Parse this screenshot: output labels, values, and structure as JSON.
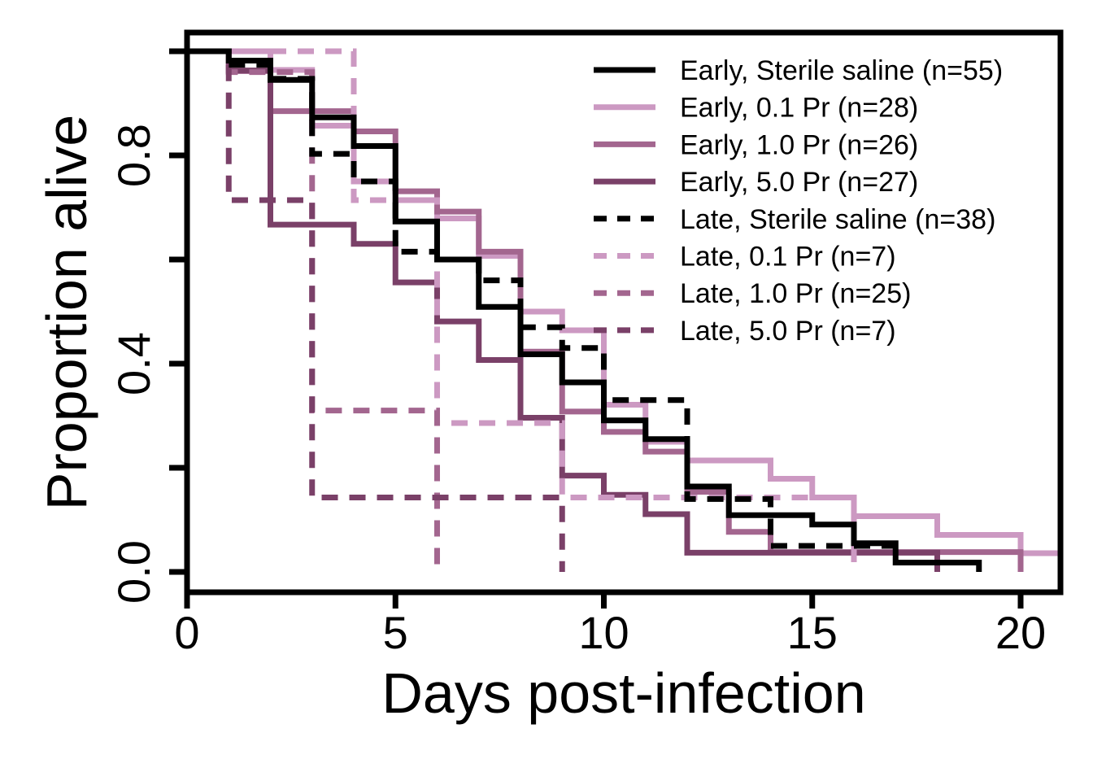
{
  "chart_data": {
    "type": "line",
    "subtype": "kaplan-meier step survival curves",
    "xlabel": "Days post-infection",
    "ylabel": "Proportion alive",
    "xlim": [
      0,
      21
    ],
    "ylim": [
      0,
      1
    ],
    "x_ticks": [
      0,
      5,
      10,
      15,
      20
    ],
    "x_tick_labels": [
      "0",
      "5",
      "10",
      "15",
      "20"
    ],
    "y_ticks": [
      0,
      0.2,
      0.4,
      0.6,
      0.8,
      1.0
    ],
    "y_tick_labels": [
      "0.0",
      "",
      "0.4",
      "",
      "0.8",
      ""
    ],
    "grid": false,
    "legend_position": "top-right",
    "series": [
      {
        "name": "Early, Sterile saline (n=55)",
        "color": "#000000",
        "dash": "solid",
        "x": [
          0,
          1,
          2,
          3,
          4,
          5,
          6,
          7,
          8,
          9,
          10,
          11,
          12,
          13,
          14,
          15,
          16,
          17,
          18,
          19
        ],
        "y": [
          1.0,
          0.982,
          0.945,
          0.873,
          0.818,
          0.673,
          0.6,
          0.509,
          0.418,
          0.364,
          0.291,
          0.255,
          0.164,
          0.109,
          0.109,
          0.091,
          0.055,
          0.018,
          0.018,
          0.0
        ]
      },
      {
        "name": "Early, 0.1 Pr (n=28)",
        "color": "#cc99c2",
        "dash": "solid",
        "x": [
          0,
          2,
          3,
          4,
          5,
          6,
          7,
          8,
          9,
          10,
          11,
          12,
          13,
          14,
          15,
          16,
          17,
          18,
          20,
          21
        ],
        "y": [
          1.0,
          0.964,
          0.857,
          0.75,
          0.714,
          0.679,
          0.607,
          0.5,
          0.464,
          0.321,
          0.25,
          0.214,
          0.214,
          0.179,
          0.143,
          0.107,
          0.107,
          0.071,
          0.036,
          0.036
        ]
      },
      {
        "name": "Early, 1.0 Pr (n=26)",
        "color": "#a3668f",
        "dash": "solid",
        "x": [
          0,
          1,
          2,
          3,
          4,
          5,
          6,
          7,
          8,
          9,
          10,
          11,
          12,
          13,
          14,
          15,
          16,
          17,
          18,
          19,
          20
        ],
        "y": [
          1.0,
          0.962,
          0.885,
          0.885,
          0.846,
          0.731,
          0.692,
          0.615,
          0.423,
          0.308,
          0.269,
          0.231,
          0.154,
          0.077,
          0.038,
          0.038,
          0.038,
          0.038,
          0.038,
          0.038,
          0.0
        ]
      },
      {
        "name": "Early, 5.0 Pr (n=27)",
        "color": "#7a4068",
        "dash": "solid",
        "x": [
          0,
          1,
          2,
          3,
          4,
          5,
          6,
          7,
          8,
          9,
          10,
          11,
          12,
          13,
          14,
          15,
          16,
          17,
          18
        ],
        "y": [
          1.0,
          0.963,
          0.667,
          0.667,
          0.63,
          0.556,
          0.481,
          0.407,
          0.296,
          0.185,
          0.148,
          0.111,
          0.037,
          0.037,
          0.037,
          0.037,
          0.037,
          0.037,
          0.0
        ]
      },
      {
        "name": "Late, Sterile saline (n=38)",
        "color": "#000000",
        "dash": "dashed",
        "x": [
          0,
          1,
          2,
          3,
          4,
          5,
          6,
          7,
          8,
          9,
          10,
          11,
          12,
          13,
          14,
          15,
          16,
          17
        ],
        "y": [
          1.0,
          0.974,
          0.947,
          0.803,
          0.75,
          0.615,
          0.6,
          0.56,
          0.47,
          0.43,
          0.33,
          0.33,
          0.14,
          0.14,
          0.05,
          0.05,
          0.05,
          0.05
        ]
      },
      {
        "name": "Late, 0.1 Pr (n=7)",
        "color": "#cc99c2",
        "dash": "dashed",
        "x": [
          0,
          4,
          5,
          6,
          7,
          8,
          9,
          10,
          12,
          14,
          16,
          16
        ],
        "y": [
          1.0,
          0.714,
          0.714,
          0.286,
          0.286,
          0.286,
          0.143,
          0.143,
          0.143,
          0.143,
          0.143,
          0.0
        ]
      },
      {
        "name": "Late, 1.0 Pr (n=25)",
        "color": "#a3668f",
        "dash": "dashed",
        "x": [
          0,
          1,
          2,
          3,
          4,
          5,
          6,
          6
        ],
        "y": [
          1.0,
          0.96,
          0.96,
          0.31,
          0.31,
          0.31,
          0.31,
          0.0
        ]
      },
      {
        "name": "Late, 5.0 Pr (n=7)",
        "color": "#7a4068",
        "dash": "dashed",
        "x": [
          0,
          1,
          3,
          4,
          5,
          6,
          7,
          8,
          9,
          9
        ],
        "y": [
          1.0,
          0.714,
          0.143,
          0.143,
          0.143,
          0.143,
          0.143,
          0.143,
          0.143,
          0.0
        ]
      }
    ]
  }
}
